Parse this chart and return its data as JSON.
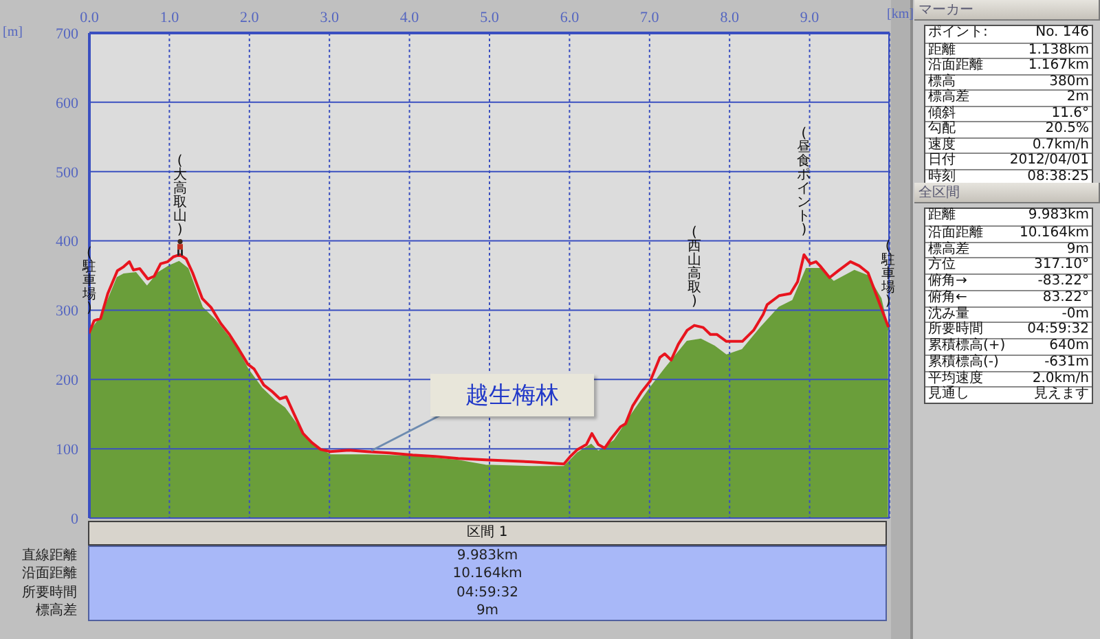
{
  "chart_data": [
    {
      "type": "line",
      "xlabel": "[km]",
      "ylabel": "[m]",
      "xlim": [
        0,
        10
      ],
      "xticks": [
        {
          "value": 0,
          "label": "0.0"
        },
        {
          "value": 1,
          "label": "1.0"
        },
        {
          "value": 2,
          "label": "2.0"
        },
        {
          "value": 3,
          "label": "3.0"
        },
        {
          "value": 4,
          "label": "4.0"
        },
        {
          "value": 5,
          "label": "5.0"
        },
        {
          "value": 6,
          "label": "6.0"
        },
        {
          "value": 7,
          "label": "7.0"
        },
        {
          "value": 8,
          "label": "8.0"
        },
        {
          "value": 9,
          "label": "9.0"
        }
      ],
      "ylim": [
        0,
        700
      ],
      "yticks": [
        0,
        100,
        200,
        300,
        400,
        500,
        600,
        700
      ],
      "grid": true,
      "series": [
        {
          "type": "area",
          "color": "#6a9e3a",
          "x": [
            0,
            0.15,
            0.35,
            0.43,
            0.58,
            0.72,
            0.86,
            1.0,
            1.12,
            1.23,
            1.41,
            1.58,
            1.81,
            1.98,
            2.15,
            2.32,
            2.44,
            2.61,
            2.78,
            3.01,
            3.47,
            4.04,
            4.61,
            4.95,
            5.53,
            5.93,
            6.1,
            6.27,
            6.36,
            6.56,
            6.79,
            7.01,
            7.19,
            7.47,
            7.64,
            7.81,
            7.96,
            8.16,
            8.39,
            8.62,
            8.79,
            8.96,
            9.13,
            9.3,
            9.56,
            9.72,
            9.89,
            9.98
          ],
          "values": [
            268,
            291,
            347,
            352,
            354,
            334,
            354,
            364,
            370,
            360,
            304,
            285,
            251,
            215,
            188,
            169,
            159,
            132,
            106,
            91,
            91,
            89,
            83,
            76,
            74,
            74,
            94,
            106,
            96,
            112,
            152,
            188,
            215,
            255,
            258,
            248,
            235,
            243,
            275,
            304,
            314,
            360,
            360,
            341,
            357,
            350,
            317,
            271
          ]
        },
        {
          "type": "line",
          "color": "#e8141e",
          "x": [
            0,
            0.06,
            0.14,
            0.23,
            0.35,
            0.42,
            0.5,
            0.55,
            0.63,
            0.73,
            0.81,
            0.89,
            0.98,
            1.05,
            1.13,
            1.21,
            1.29,
            1.41,
            1.52,
            1.64,
            1.75,
            1.86,
            1.98,
            2.06,
            2.18,
            2.29,
            2.38,
            2.46,
            2.55,
            2.67,
            2.78,
            2.89,
            3.01,
            3.24,
            3.47,
            3.75,
            4.04,
            4.32,
            4.61,
            4.95,
            5.53,
            5.93,
            6.01,
            6.1,
            6.21,
            6.28,
            6.36,
            6.44,
            6.53,
            6.64,
            6.7,
            6.79,
            6.9,
            7.01,
            7.13,
            7.19,
            7.27,
            7.36,
            7.47,
            7.56,
            7.67,
            7.76,
            7.84,
            7.96,
            8.16,
            8.3,
            8.42,
            8.47,
            8.62,
            8.76,
            8.85,
            8.93,
            9.01,
            9.08,
            9.13,
            9.25,
            9.36,
            9.51,
            9.62,
            9.73,
            9.85,
            9.98
          ],
          "values": [
            268,
            285,
            288,
            324,
            357,
            362,
            370,
            358,
            360,
            345,
            349,
            367,
            370,
            377,
            380,
            374,
            354,
            317,
            304,
            281,
            265,
            245,
            222,
            215,
            192,
            182,
            172,
            175,
            152,
            122,
            109,
            99,
            96,
            98,
            96,
            94,
            91,
            89,
            86,
            84,
            81,
            78,
            89,
            99,
            106,
            122,
            106,
            101,
            116,
            132,
            136,
            162,
            182,
            198,
            232,
            237,
            228,
            251,
            271,
            278,
            275,
            265,
            265,
            255,
            255,
            271,
            294,
            308,
            321,
            324,
            341,
            380,
            367,
            370,
            364,
            347,
            357,
            370,
            364,
            354,
            317,
            277
          ]
        }
      ],
      "annotations": [
        {
          "text": "(駐車場)",
          "x": 0,
          "y": 268
        },
        {
          "text": "(大高取山)",
          "x": 1.13,
          "y": 380
        },
        {
          "text": "(西山高取)",
          "x": 7.56,
          "y": 278
        },
        {
          "text": "(昼食ポイント)",
          "x": 8.93,
          "y": 380
        },
        {
          "text": "(駐車場)",
          "x": 9.98,
          "y": 277
        },
        {
          "text": "越生梅林",
          "x": 3.52,
          "y": 98
        }
      ]
    },
    {
      "type": "other",
      "title": "マーカー",
      "annotations": [
        "ポイント:",
        "No. 146",
        "距離",
        "1.138km",
        "沿面距離",
        "1.167km",
        "標高",
        "380m",
        "標高差",
        "2m",
        "傾斜",
        "11.6°",
        "勾配",
        "20.5%",
        "速度",
        "0.7km/h",
        "日付",
        "2012/04/01",
        "時刻",
        "08:38:25"
      ]
    },
    {
      "type": "other",
      "title": "全区間",
      "annotations": [
        "距離",
        "9.983km",
        "沿面距離",
        "10.164km",
        "標高差",
        "9m",
        "方位",
        "317.10°",
        "俯角→",
        "-83.22°",
        "俯角←",
        "83.22°",
        "沈み量",
        "-0m",
        "所要時間",
        "04:59:32",
        "累積標高(+)",
        "640m",
        "累積標高(-)",
        "-631m",
        "平均速度",
        "2.0km/h",
        "見通し",
        "見えます"
      ]
    },
    {
      "type": "other",
      "title": "区間 1",
      "annotations": [
        "直線距離",
        "9.983km",
        "沿面距離",
        "10.164km",
        "所要時間",
        "04:59:32",
        "標高差",
        "9m"
      ]
    }
  ]
}
